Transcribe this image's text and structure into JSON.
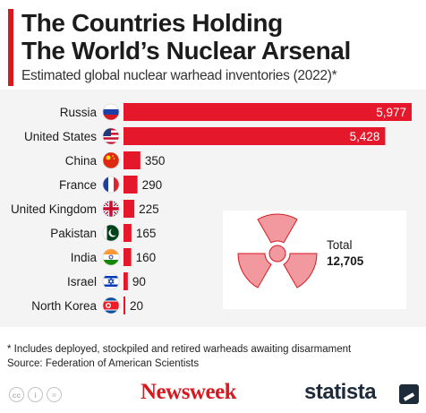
{
  "header": {
    "title": "The Countries Holding\nThe World’s Nuclear Arsenal",
    "subtitle": "Estimated global nuclear warhead inventories (2022)*"
  },
  "colors": {
    "bar": "#e4182a",
    "accent": "#d71920",
    "symbol": "#f2999f"
  },
  "chart_data": {
    "type": "bar",
    "orientation": "horizontal",
    "categories": [
      "Russia",
      "United States",
      "China",
      "France",
      "United Kingdom",
      "Pakistan",
      "India",
      "Israel",
      "North Korea"
    ],
    "values": [
      5977,
      5428,
      350,
      290,
      225,
      165,
      160,
      90,
      20
    ],
    "value_labels": [
      "5,977",
      "5,428",
      "350",
      "290",
      "225",
      "165",
      "160",
      "90",
      "20"
    ],
    "flag_icons": [
      "russia-flag-icon",
      "united-states-flag-icon",
      "china-flag-icon",
      "france-flag-icon",
      "united-kingdom-flag-icon",
      "pakistan-flag-icon",
      "india-flag-icon",
      "israel-flag-icon",
      "north-korea-flag-icon"
    ],
    "title": "",
    "xlabel": "",
    "ylabel": "",
    "xlim": [
      0,
      5977
    ],
    "grid": false,
    "legend": "none",
    "total_label": "Total",
    "total_value": "12,705"
  },
  "footer": {
    "note": "* Includes deployed, stockpiled and retired warheads awaiting disarmament",
    "source": "Source: Federation of American Scientists",
    "cc_icons": [
      "cc",
      "i",
      "="
    ],
    "newsweek": "Newsweek",
    "statista": "statista"
  }
}
